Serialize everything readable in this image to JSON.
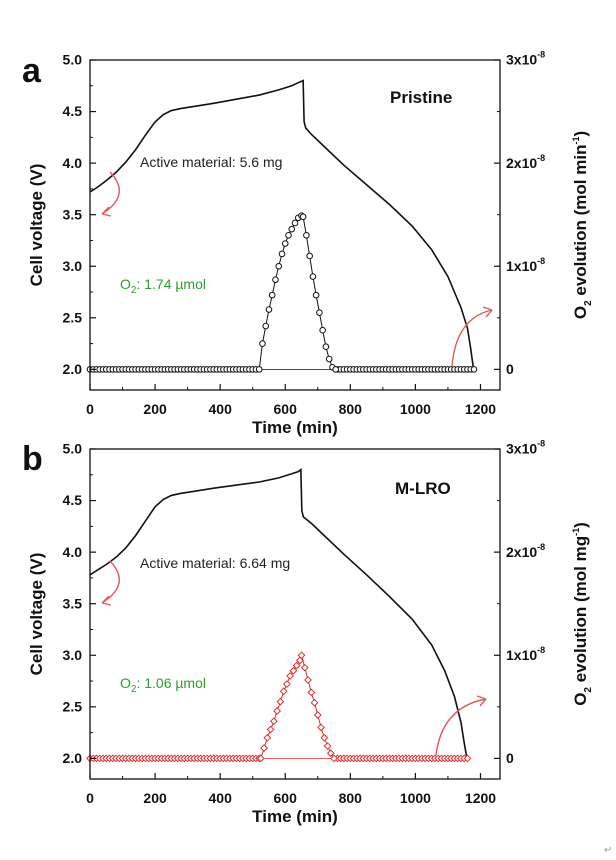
{
  "figure": {
    "watermark": "↵"
  },
  "chart_data": [
    {
      "type": "line",
      "panel_label": "a",
      "title": "Pristine",
      "xlabel": "Time (min)",
      "ylabel_left": "Cell voltage (V)",
      "ylabel_right": "O2 evolution (mol min-1)",
      "ylabel_right_parts": {
        "main": "O",
        "sub": "2",
        "rest": " evolution (mol min",
        "sup": "-1",
        "end": ")"
      },
      "xlim": [
        0,
        1260
      ],
      "ylim_left": [
        1.8,
        5.0
      ],
      "ylim_right": [
        -0.2,
        3.0
      ],
      "right_unit_exponent": "-8",
      "x_ticks": [
        "0",
        "200",
        "400",
        "600",
        "800",
        "1000",
        "1200"
      ],
      "y_left_ticks": [
        "2.0",
        "2.5",
        "3.0",
        "3.5",
        "4.0",
        "4.5",
        "5.0"
      ],
      "y_right_ticks": [
        "0",
        "1x10",
        "2x10",
        "3x10"
      ],
      "annotations": {
        "active_material": "Active material: 5.6 mg",
        "o2_main": "O",
        "o2_sub": "2",
        "o2_rest": ": 1.74 µmol"
      },
      "series": [
        {
          "name": "Cell voltage",
          "axis": "left",
          "color": "#111111",
          "x": [
            0,
            20,
            50,
            80,
            110,
            140,
            170,
            200,
            225,
            250,
            280,
            320,
            380,
            450,
            520,
            580,
            620,
            640,
            655,
            658,
            663,
            680,
            720,
            780,
            850,
            920,
            990,
            1050,
            1100,
            1140,
            1160,
            1170,
            1180
          ],
          "y": [
            3.72,
            3.76,
            3.83,
            3.91,
            4.01,
            4.13,
            4.27,
            4.4,
            4.47,
            4.51,
            4.53,
            4.55,
            4.58,
            4.62,
            4.66,
            4.71,
            4.75,
            4.78,
            4.8,
            4.4,
            4.34,
            4.28,
            4.16,
            3.98,
            3.79,
            3.6,
            3.39,
            3.16,
            2.9,
            2.6,
            2.4,
            2.2,
            1.97
          ]
        },
        {
          "name": "O2 evolution",
          "axis": "right",
          "color": "#111111",
          "marker": "circle",
          "x": [
            520,
            530,
            540,
            550,
            560,
            570,
            580,
            590,
            600,
            610,
            620,
            630,
            640,
            650,
            655,
            665,
            675,
            685,
            695,
            705,
            715,
            725,
            735,
            745,
            755
          ],
          "y": [
            0.0,
            0.25,
            0.42,
            0.58,
            0.72,
            0.87,
            1.0,
            1.12,
            1.22,
            1.3,
            1.36,
            1.42,
            1.47,
            1.49,
            1.48,
            1.3,
            1.1,
            0.9,
            0.72,
            0.55,
            0.38,
            0.22,
            0.1,
            0.02,
            0.0
          ],
          "baseline_x_range": [
            0,
            1180
          ],
          "baseline_step": 10,
          "baseline_y": 0.0
        }
      ]
    },
    {
      "type": "line",
      "panel_label": "b",
      "title": "M-LRO",
      "xlabel": "Time (min)",
      "ylabel_left": "Cell voltage (V)",
      "ylabel_right": "O2 evolution (mol mg-1)",
      "ylabel_right_parts": {
        "main": "O",
        "sub": "2",
        "rest": " evolution (mol mg",
        "sup": "-1",
        "end": ")"
      },
      "xlim": [
        0,
        1260
      ],
      "ylim_left": [
        1.8,
        5.0
      ],
      "ylim_right": [
        -0.2,
        3.0
      ],
      "right_unit_exponent": "-8",
      "x_ticks": [
        "0",
        "200",
        "400",
        "600",
        "800",
        "1000",
        "1200"
      ],
      "y_left_ticks": [
        "2.0",
        "2.5",
        "3.0",
        "3.5",
        "4.0",
        "4.5",
        "5.0"
      ],
      "y_right_ticks": [
        "0",
        "1x10",
        "2x10",
        "3x10"
      ],
      "annotations": {
        "active_material": "Active material: 6.64 mg",
        "o2_main": "O",
        "o2_sub": "2",
        "o2_rest": ": 1.06 µmol"
      },
      "series": [
        {
          "name": "Cell voltage",
          "axis": "left",
          "color": "#111111",
          "x": [
            0,
            20,
            50,
            80,
            110,
            140,
            170,
            200,
            225,
            250,
            280,
            320,
            380,
            450,
            520,
            580,
            620,
            640,
            648,
            651,
            656,
            680,
            720,
            780,
            850,
            920,
            990,
            1050,
            1090,
            1120,
            1140,
            1150,
            1160
          ],
          "y": [
            3.78,
            3.82,
            3.88,
            3.95,
            4.04,
            4.16,
            4.3,
            4.44,
            4.51,
            4.55,
            4.57,
            4.59,
            4.62,
            4.65,
            4.68,
            4.72,
            4.76,
            4.78,
            4.8,
            4.4,
            4.34,
            4.28,
            4.16,
            3.98,
            3.78,
            3.57,
            3.35,
            3.1,
            2.85,
            2.6,
            2.35,
            2.15,
            1.97
          ]
        },
        {
          "name": "O2 evolution",
          "axis": "right",
          "color": "#e03030",
          "marker": "diamond",
          "x": [
            525,
            535,
            545,
            555,
            565,
            575,
            585,
            595,
            605,
            615,
            625,
            635,
            645,
            650,
            660,
            670,
            680,
            690,
            700,
            710,
            720,
            730,
            740,
            750
          ],
          "y": [
            0.0,
            0.1,
            0.2,
            0.28,
            0.36,
            0.46,
            0.55,
            0.65,
            0.72,
            0.8,
            0.85,
            0.9,
            0.95,
            1.0,
            0.88,
            0.76,
            0.64,
            0.54,
            0.42,
            0.3,
            0.2,
            0.12,
            0.05,
            0.0
          ],
          "baseline_x_range": [
            0,
            1160
          ],
          "baseline_step": 10,
          "baseline_y": 0.0
        }
      ]
    }
  ]
}
